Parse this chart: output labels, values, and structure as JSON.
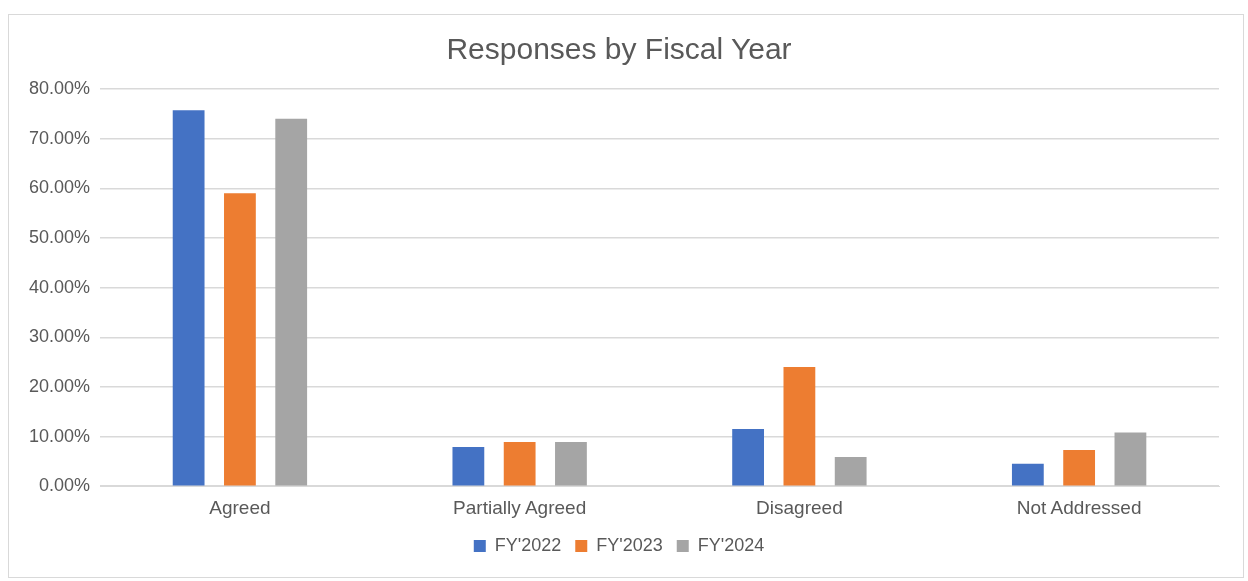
{
  "chart_data": {
    "type": "bar",
    "title": "Responses by Fiscal Year",
    "categories": [
      "Agreed",
      "Partially Agreed",
      "Disagreed",
      "Not Addressed"
    ],
    "series": [
      {
        "name": "FY'2022",
        "color": "#4472c4",
        "values": [
          75.7,
          7.9,
          11.5,
          4.5
        ]
      },
      {
        "name": "FY'2023",
        "color": "#ed7d31",
        "values": [
          59.0,
          8.9,
          24.0,
          7.3
        ]
      },
      {
        "name": "FY'2024",
        "color": "#a5a5a5",
        "values": [
          74.0,
          8.9,
          5.9,
          10.8
        ]
      }
    ],
    "ylim": [
      0,
      80
    ],
    "yticks": [
      {
        "value": 0,
        "label": "0.00%"
      },
      {
        "value": 10,
        "label": "10.00%"
      },
      {
        "value": 20,
        "label": "20.00%"
      },
      {
        "value": 30,
        "label": "30.00%"
      },
      {
        "value": 40,
        "label": "40.00%"
      },
      {
        "value": 50,
        "label": "50.00%"
      },
      {
        "value": 60,
        "label": "60.00%"
      },
      {
        "value": 70,
        "label": "70.00%"
      },
      {
        "value": 80,
        "label": "80.00%"
      }
    ],
    "grid": "y",
    "legend": "bottom"
  }
}
